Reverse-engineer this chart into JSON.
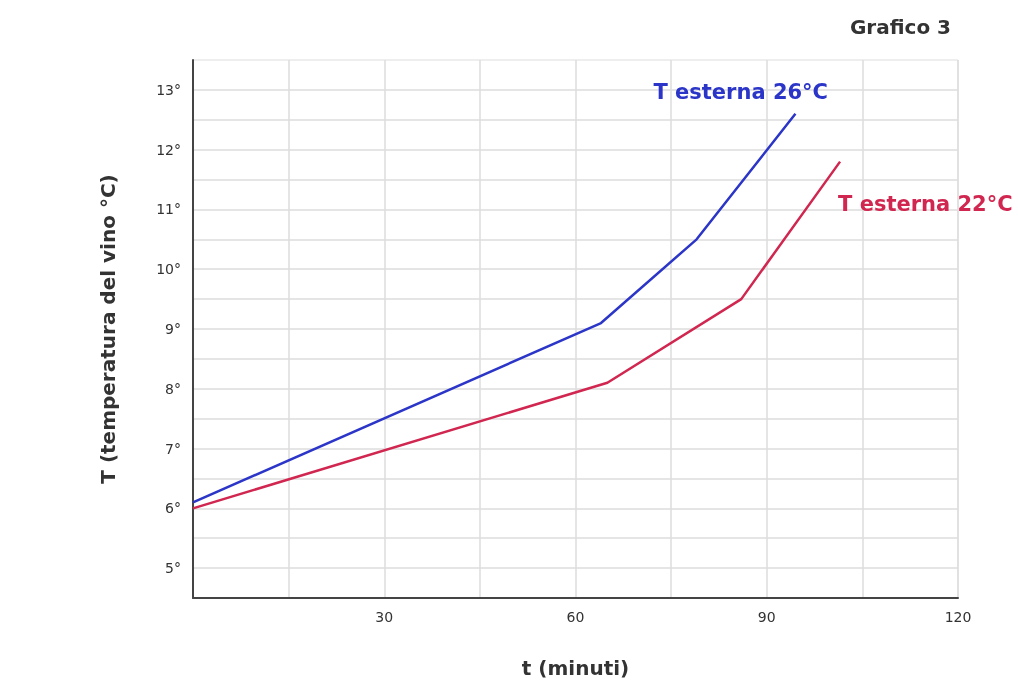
{
  "chart_data": {
    "type": "line",
    "title": "Grafico 3",
    "xlabel": "t (minuti)",
    "ylabel": "T (temperatura del vino °C)",
    "xlim": [
      0,
      120
    ],
    "xticks": [
      {
        "value": 0,
        "label": null
      },
      {
        "value": 15,
        "label": null
      },
      30,
      {
        "value": 45,
        "label": null
      },
      60,
      {
        "value": 75,
        "label": null
      },
      90,
      {
        "value": 105,
        "label": null
      },
      120
    ],
    "ylim": [
      4.5,
      13.5
    ],
    "yticks": [
      {
        "value": 5,
        "label": "5°"
      },
      {
        "value": 5.5,
        "label": null
      },
      {
        "value": 6,
        "label": "6°"
      },
      {
        "value": 6.5,
        "label": null
      },
      {
        "value": 7,
        "label": "7°"
      },
      {
        "value": 7.5,
        "label": null
      },
      {
        "value": 8,
        "label": "8°"
      },
      {
        "value": 8.5,
        "label": null
      },
      {
        "value": 9,
        "label": "9°"
      },
      {
        "value": 9.5,
        "label": null
      },
      {
        "value": 10,
        "label": "10°"
      },
      {
        "value": 10.5,
        "label": null
      },
      {
        "value": 11,
        "label": "11°"
      },
      {
        "value": 11.5,
        "label": null
      },
      {
        "value": 12,
        "label": "12°"
      },
      {
        "value": 12.5,
        "label": null
      },
      {
        "value": 13,
        "label": "13°"
      }
    ],
    "grid": true,
    "series": [
      {
        "name": "T esterna 26°C",
        "color": "#2b35c8",
        "x": [
          0,
          64,
          79,
          94.5
        ],
        "values": [
          6.1,
          9.1,
          10.5,
          12.6
        ]
      },
      {
        "name": "T esterna 22°C",
        "color": "#d0264f",
        "x": [
          0,
          65,
          86,
          101.5
        ],
        "values": [
          6.0,
          8.1,
          9.5,
          11.8
        ]
      }
    ]
  }
}
